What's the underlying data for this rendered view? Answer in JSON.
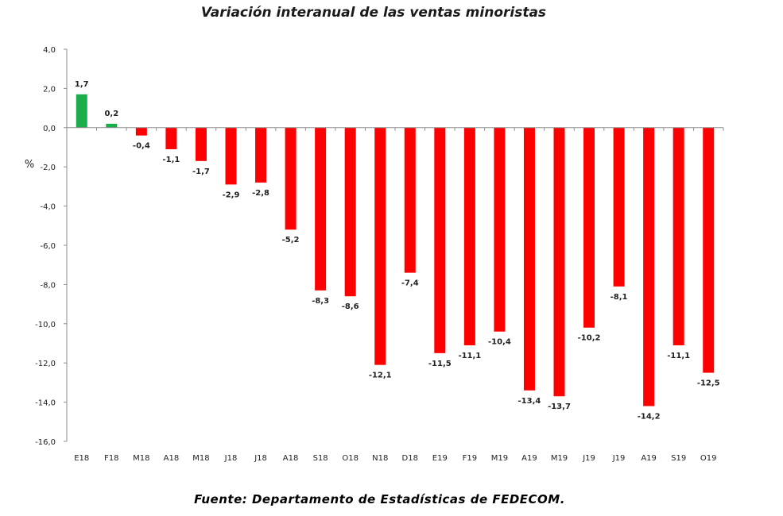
{
  "chart_data": {
    "type": "bar",
    "title": "Variación interanual de las ventas minoristas",
    "ylabel": "%",
    "xlabel": "",
    "ylim": [
      -16,
      4
    ],
    "yticks": [
      "4,0",
      "2,0",
      "0,0",
      "-2,0",
      "-4,0",
      "-6,0",
      "-8,0",
      "-10,0",
      "-12,0",
      "-14,0",
      "-16,0"
    ],
    "grid": false,
    "categories": [
      "E18",
      "F18",
      "M18",
      "A18",
      "M18",
      "J18",
      "J18",
      "A18",
      "S18",
      "O18",
      "N18",
      "D18",
      "E19",
      "F19",
      "M19",
      "A19",
      "M19",
      "J19",
      "J19",
      "A19",
      "S19",
      "O19"
    ],
    "values": [
      1.7,
      0.2,
      -0.4,
      -1.1,
      -1.7,
      -2.9,
      -2.8,
      -5.2,
      -8.3,
      -8.6,
      -12.1,
      -7.4,
      -11.5,
      -11.1,
      -10.4,
      -13.4,
      -13.7,
      -10.2,
      -8.1,
      -14.2,
      -11.1,
      -12.5
    ],
    "value_labels": [
      "1,7",
      "0,2",
      "-0,4",
      "-1,1",
      "-1,7",
      "-2,9",
      "-2,8",
      "-5,2",
      "-8,3",
      "-8,6",
      "-12,1",
      "-7,4",
      "-11,5",
      "-11,1",
      "-10,4",
      "-13,4",
      "-13,7",
      "-10,2",
      "-8,1",
      "-14,2",
      "-11,1",
      "-12,5"
    ],
    "colors": {
      "positive": "#1aad4a",
      "negative": "#ff0000"
    }
  },
  "source": "Fuente: Departamento de Estadísticas de FEDECOM."
}
